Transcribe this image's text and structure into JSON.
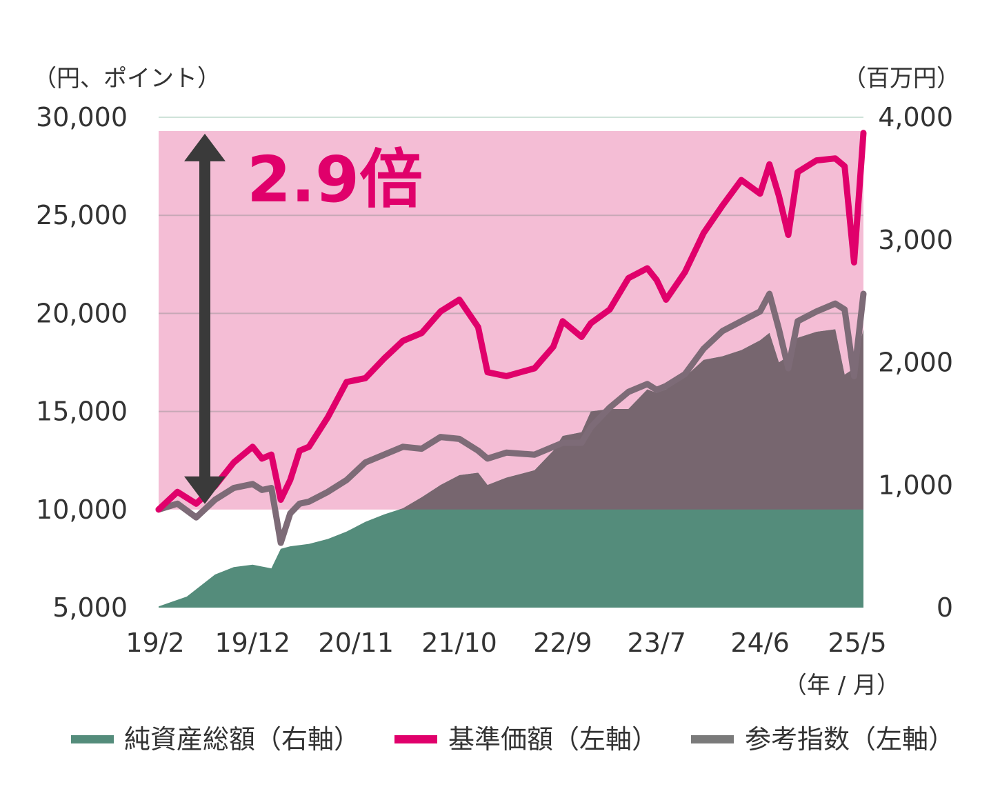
{
  "colors": {
    "net_assets": "#548c7b",
    "nav": "#e0006b",
    "benchmark": "#7d6b77",
    "benchmark_legend": "#7a7a7a",
    "highlight": "#f4bdd5",
    "area_over_highlight": "#77666f",
    "arrow": "#3a3a3a",
    "grid": "#c7a8b6",
    "top_grid": "#cfe3d9"
  },
  "chart_data": {
    "type": "line+area",
    "left_axis_unit": "（円、ポイント）",
    "right_axis_unit": "（百万円）",
    "x_axis_unit": "（年 / 月）",
    "left_ylim": [
      5000,
      30000
    ],
    "right_ylim": [
      0,
      4000
    ],
    "left_ticks": [
      "30,000",
      "25,000",
      "20,000",
      "15,000",
      "10,000",
      "5,000"
    ],
    "right_ticks": [
      "4,000",
      "3,000",
      "2,000",
      "1,000",
      "0"
    ],
    "x_ticks": [
      "19/2",
      "19/12",
      "20/11",
      "21/10",
      "22/9",
      "23/7",
      "24/6",
      "25/5"
    ],
    "highlight_range": [
      10000,
      29300
    ],
    "annotation": "2.9倍",
    "legend": [
      "純資産総額（右軸）",
      "基準価額（左軸）",
      "参考指数（左軸）"
    ],
    "series": [
      {
        "name": "基準価額（左軸）",
        "axis": "left",
        "x": [
          "2019-02",
          "2019-04",
          "2019-06",
          "2019-08",
          "2019-10",
          "2019-12",
          "2020-01",
          "2020-02",
          "2020-03",
          "2020-04",
          "2020-05",
          "2020-06",
          "2020-08",
          "2020-10",
          "2020-12",
          "2021-02",
          "2021-04",
          "2021-06",
          "2021-08",
          "2021-10",
          "2021-12",
          "2022-01",
          "2022-03",
          "2022-06",
          "2022-08",
          "2022-09",
          "2022-11",
          "2022-12",
          "2023-02",
          "2023-04",
          "2023-06",
          "2023-07",
          "2023-08",
          "2023-10",
          "2023-12",
          "2024-02",
          "2024-04",
          "2024-06",
          "2024-07",
          "2024-08",
          "2024-09",
          "2024-10",
          "2024-12",
          "2025-02",
          "2025-03",
          "2025-04",
          "2025-05"
        ],
        "values": [
          10000,
          10900,
          10300,
          11200,
          12400,
          13200,
          12600,
          12800,
          10500,
          11500,
          13000,
          13200,
          14700,
          16500,
          16700,
          17700,
          18600,
          19000,
          20100,
          20700,
          19300,
          17000,
          16800,
          17200,
          18300,
          19600,
          18800,
          19500,
          20200,
          21800,
          22300,
          21700,
          20700,
          22100,
          24100,
          25500,
          26800,
          26100,
          27600,
          26000,
          24000,
          27200,
          27800,
          27900,
          27500,
          22600,
          29200
        ]
      },
      {
        "name": "参考指数（左軸）",
        "axis": "left",
        "x": [
          "2019-02",
          "2019-04",
          "2019-06",
          "2019-08",
          "2019-10",
          "2019-12",
          "2020-01",
          "2020-02",
          "2020-03",
          "2020-04",
          "2020-05",
          "2020-06",
          "2020-08",
          "2020-10",
          "2020-12",
          "2021-02",
          "2021-04",
          "2021-06",
          "2021-08",
          "2021-10",
          "2021-12",
          "2022-01",
          "2022-03",
          "2022-06",
          "2022-08",
          "2022-09",
          "2022-11",
          "2022-12",
          "2023-02",
          "2023-04",
          "2023-06",
          "2023-07",
          "2023-08",
          "2023-10",
          "2023-12",
          "2024-02",
          "2024-04",
          "2024-06",
          "2024-07",
          "2024-08",
          "2024-09",
          "2024-10",
          "2024-12",
          "2025-02",
          "2025-03",
          "2025-04",
          "2025-05"
        ],
        "values": [
          10000,
          10300,
          9600,
          10500,
          11100,
          11300,
          11000,
          11100,
          8300,
          9800,
          10300,
          10400,
          10900,
          11500,
          12400,
          12800,
          13200,
          13100,
          13700,
          13600,
          13000,
          12600,
          12900,
          12800,
          13200,
          13400,
          13400,
          14200,
          15200,
          16000,
          16400,
          16100,
          16300,
          16900,
          18200,
          19100,
          19600,
          20100,
          21000,
          19200,
          17200,
          19600,
          20100,
          20500,
          20200,
          16800,
          21000
        ]
      },
      {
        "name": "純資産総額（右軸）",
        "axis": "right",
        "x": [
          "2019-02",
          "2019-05",
          "2019-08",
          "2019-10",
          "2019-12",
          "2020-02",
          "2020-03",
          "2020-04",
          "2020-06",
          "2020-08",
          "2020-10",
          "2020-12",
          "2021-02",
          "2021-04",
          "2021-06",
          "2021-08",
          "2021-10",
          "2021-12",
          "2022-01",
          "2022-03",
          "2022-06",
          "2022-08",
          "2022-09",
          "2022-11",
          "2022-12",
          "2023-02",
          "2023-04",
          "2023-06",
          "2023-07",
          "2023-08",
          "2023-10",
          "2023-12",
          "2024-02",
          "2024-04",
          "2024-06",
          "2024-07",
          "2024-08",
          "2024-09",
          "2024-10",
          "2024-12",
          "2025-02",
          "2025-03",
          "2025-04",
          "2025-05"
        ],
        "values": [
          10,
          90,
          270,
          330,
          350,
          320,
          480,
          500,
          520,
          560,
          620,
          700,
          760,
          810,
          900,
          1000,
          1080,
          1100,
          1000,
          1060,
          1120,
          1280,
          1400,
          1430,
          1600,
          1620,
          1620,
          1780,
          1750,
          1780,
          1880,
          2020,
          2050,
          2100,
          2180,
          2240,
          2000,
          2050,
          2200,
          2250,
          2270,
          1900,
          1950,
          2270
        ]
      }
    ]
  }
}
